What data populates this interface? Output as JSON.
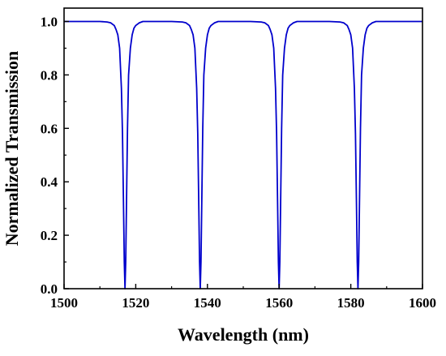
{
  "chart_data": {
    "type": "line",
    "title": "",
    "xlabel": "Wavelength (nm)",
    "ylabel": "Normalized Transmission",
    "xlim": [
      1500,
      1600
    ],
    "ylim": [
      0,
      1.05
    ],
    "x_ticks": [
      1500,
      1520,
      1540,
      1560,
      1580,
      1600
    ],
    "y_ticks": [
      0.0,
      0.2,
      0.4,
      0.6,
      0.8,
      1.0
    ],
    "x_tick_labels": [
      "1500",
      "1520",
      "1540",
      "1560",
      "1580",
      "1600"
    ],
    "y_tick_labels": [
      "0.0",
      "0.2",
      "0.4",
      "0.6",
      "0.8",
      "1.0"
    ],
    "grid": false,
    "legend": "none",
    "line_color": "#0000CC",
    "series": [
      {
        "x": [
          1500,
          1510,
          1512,
          1513,
          1514,
          1514.5,
          1515,
          1515.5,
          1516,
          1516.3,
          1516.6,
          1516.8,
          1517,
          1517.2,
          1517.4,
          1517.7,
          1518,
          1518.5,
          1519,
          1519.5,
          1520,
          1521,
          1522,
          1530,
          1533,
          1534,
          1535,
          1535.5,
          1536,
          1536.5,
          1537,
          1537.3,
          1537.6,
          1537.8,
          1538,
          1538.2,
          1538.4,
          1538.7,
          1539,
          1539.5,
          1540,
          1540.5,
          1541,
          1542,
          1543,
          1552,
          1555,
          1556,
          1557,
          1557.5,
          1558,
          1558.5,
          1559,
          1559.3,
          1559.6,
          1559.8,
          1560,
          1560.2,
          1560.4,
          1560.7,
          1561,
          1561.5,
          1562,
          1562.5,
          1563,
          1564,
          1565,
          1574,
          1577,
          1578,
          1579,
          1579.5,
          1580,
          1580.5,
          1581,
          1581.3,
          1581.6,
          1581.8,
          1582,
          1582.2,
          1582.4,
          1582.7,
          1583,
          1583.5,
          1584,
          1584.5,
          1585,
          1586,
          1587,
          1600
        ],
        "y": [
          1.0,
          1.0,
          0.998,
          0.995,
          0.985,
          0.97,
          0.95,
          0.9,
          0.75,
          0.58,
          0.3,
          0.1,
          0.0,
          0.1,
          0.3,
          0.6,
          0.8,
          0.9,
          0.95,
          0.975,
          0.985,
          0.995,
          1.0,
          1.0,
          0.998,
          0.995,
          0.985,
          0.97,
          0.95,
          0.9,
          0.75,
          0.58,
          0.3,
          0.1,
          0.0,
          0.1,
          0.3,
          0.6,
          0.8,
          0.9,
          0.95,
          0.975,
          0.985,
          0.995,
          1.0,
          1.0,
          0.998,
          0.995,
          0.985,
          0.97,
          0.95,
          0.9,
          0.75,
          0.58,
          0.3,
          0.1,
          0.0,
          0.1,
          0.3,
          0.6,
          0.8,
          0.9,
          0.95,
          0.975,
          0.985,
          0.995,
          1.0,
          1.0,
          0.998,
          0.995,
          0.985,
          0.97,
          0.95,
          0.9,
          0.75,
          0.58,
          0.3,
          0.1,
          0.0,
          0.1,
          0.3,
          0.6,
          0.8,
          0.9,
          0.95,
          0.975,
          0.985,
          0.995,
          1.0,
          1.0
        ]
      }
    ]
  }
}
